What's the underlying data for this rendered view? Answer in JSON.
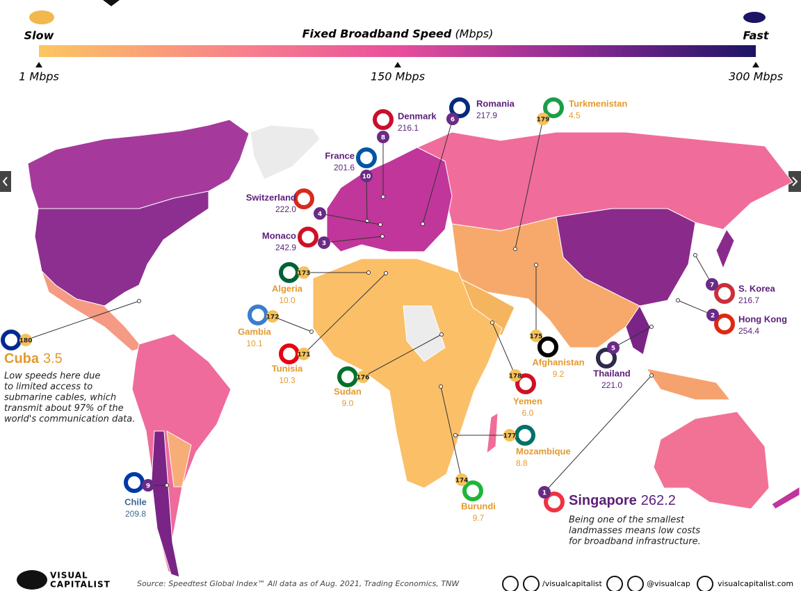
{
  "legend": {
    "slow": "Slow",
    "fast": "Fast",
    "title": "Fixed Broadband Speed",
    "unit": "(Mbps)",
    "ticks": [
      "1 Mbps",
      "150 Mbps",
      "300 Mbps"
    ]
  },
  "callouts": [
    {
      "rank": "8",
      "name": "Denmark",
      "speed": "216.1"
    },
    {
      "rank": "6",
      "name": "Romania",
      "speed": "217.9"
    },
    {
      "rank": "179",
      "name": "Turkmenistan",
      "speed": "4.5"
    },
    {
      "rank": "10",
      "name": "France",
      "speed": "201.6"
    },
    {
      "rank": "4",
      "name": "Switzerland",
      "speed": "222.0"
    },
    {
      "rank": "3",
      "name": "Monaco",
      "speed": "242.9"
    },
    {
      "rank": "173",
      "name": "Algeria",
      "speed": "10.0"
    },
    {
      "rank": "172",
      "name": "Gambia",
      "speed": "10.1"
    },
    {
      "rank": "171",
      "name": "Tunisia",
      "speed": "10.3"
    },
    {
      "rank": "180",
      "name": "Cuba",
      "speed": "3.5"
    },
    {
      "rank": "176",
      "name": "Sudan",
      "speed": "9.0"
    },
    {
      "rank": "178",
      "name": "Yemen",
      "speed": "6.0"
    },
    {
      "rank": "175",
      "name": "Afghanistan",
      "speed": "9.2"
    },
    {
      "rank": "5",
      "name": "Thailand",
      "speed": "221.0"
    },
    {
      "rank": "7",
      "name": "S. Korea",
      "speed": "216.7"
    },
    {
      "rank": "2",
      "name": "Hong Kong",
      "speed": "254.4"
    },
    {
      "rank": "177",
      "name": "Mozambique",
      "speed": "8.8"
    },
    {
      "rank": "174",
      "name": "Burundi",
      "speed": "9.7"
    },
    {
      "rank": "9",
      "name": "Chile",
      "speed": "209.8"
    },
    {
      "rank": "1",
      "name": "Singapore",
      "speed": "262.2"
    }
  ],
  "notes": {
    "cuba": [
      "Low speeds here due",
      "to limited access to",
      "submarine cables, which",
      "transmit about 97% of the",
      "world's communication data."
    ],
    "singapore": [
      "Being one of the smallest",
      "landmasses means low costs",
      "for broadband infrastructure."
    ]
  },
  "source": "Source: Speedtest Global Index™ All data as of Aug. 2021, Trading Economics, TNW",
  "footer": {
    "brand": [
      "VISUAL",
      "CAPITALIST"
    ],
    "social1": "/visualcapitalist",
    "social2": "@visualcap",
    "site": "visualcapitalist.com"
  }
}
